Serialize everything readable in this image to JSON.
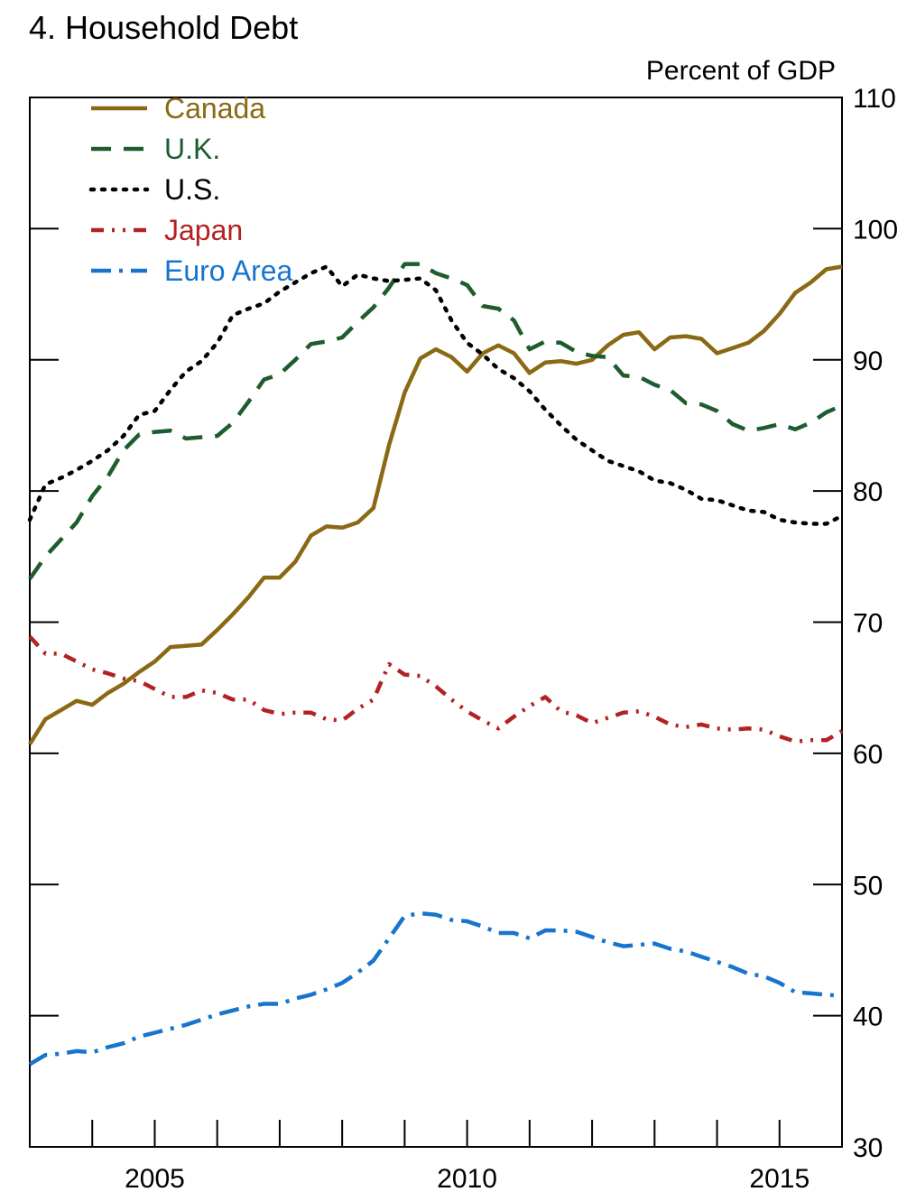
{
  "chart_data": {
    "type": "line",
    "title": "4. Household Debt",
    "ylabel": "Percent of GDP",
    "xlim": [
      2003.0,
      2016.0
    ],
    "ylim": [
      30,
      110
    ],
    "y_ticks": [
      30,
      40,
      50,
      60,
      70,
      80,
      90,
      100,
      110
    ],
    "x_tick_labels": [
      {
        "x": 2005.0,
        "label": "2005"
      },
      {
        "x": 2010.0,
        "label": "2010"
      },
      {
        "x": 2015.0,
        "label": "2015"
      }
    ],
    "x_minor_ticks": [
      2004.0,
      2005.0,
      2006.0,
      2007.0,
      2008.0,
      2009.0,
      2010.0,
      2011.0,
      2012.0,
      2013.0,
      2014.0,
      2015.0
    ],
    "grid": false,
    "legend_position": "top-left",
    "y_axis_side": "right",
    "series": [
      {
        "name": "Canada",
        "color": "#8B6914",
        "style": "solid",
        "x": [
          2003.0,
          2003.25,
          2003.5,
          2003.75,
          2004.0,
          2004.25,
          2004.5,
          2004.75,
          2005.0,
          2005.25,
          2005.5,
          2005.75,
          2006.0,
          2006.25,
          2006.5,
          2006.75,
          2007.0,
          2007.25,
          2007.5,
          2007.75,
          2008.0,
          2008.25,
          2008.5,
          2008.75,
          2009.0,
          2009.25,
          2009.5,
          2009.75,
          2010.0,
          2010.25,
          2010.5,
          2010.75,
          2011.0,
          2011.25,
          2011.5,
          2011.75,
          2012.0,
          2012.25,
          2012.5,
          2012.75,
          2013.0,
          2013.25,
          2013.5,
          2013.75,
          2014.0,
          2014.25,
          2014.5,
          2014.75,
          2015.0,
          2015.25,
          2015.5,
          2015.75,
          2016.0
        ],
        "y": [
          60.7,
          62.6,
          63.3,
          64.0,
          63.7,
          64.6,
          65.3,
          66.2,
          67.0,
          68.1,
          68.2,
          68.3,
          69.4,
          70.6,
          71.9,
          73.4,
          73.4,
          74.6,
          76.6,
          77.3,
          77.2,
          77.6,
          78.7,
          83.5,
          87.5,
          90.1,
          90.8,
          90.2,
          89.1,
          90.5,
          91.1,
          90.5,
          89.0,
          89.8,
          89.9,
          89.7,
          90.0,
          91.1,
          91.9,
          92.1,
          90.8,
          91.7,
          91.8,
          91.6,
          90.5,
          90.9,
          91.3,
          92.2,
          93.5,
          95.1,
          95.9,
          96.9,
          97.1
        ]
      },
      {
        "name": "U.K.",
        "color": "#1E5C2E",
        "style": "dashed",
        "x": [
          2003.0,
          2003.25,
          2003.5,
          2003.75,
          2004.0,
          2004.25,
          2004.5,
          2004.75,
          2005.0,
          2005.25,
          2005.5,
          2005.75,
          2006.0,
          2006.25,
          2006.5,
          2006.75,
          2007.0,
          2007.25,
          2007.5,
          2007.75,
          2008.0,
          2008.25,
          2008.5,
          2008.75,
          2009.0,
          2009.25,
          2009.5,
          2009.75,
          2010.0,
          2010.25,
          2010.5,
          2010.75,
          2011.0,
          2011.25,
          2011.5,
          2011.75,
          2012.0,
          2012.25,
          2012.5,
          2012.75,
          2013.0,
          2013.25,
          2013.5,
          2013.75,
          2014.0,
          2014.25,
          2014.5,
          2014.75,
          2015.0,
          2015.25,
          2015.5,
          2015.75,
          2016.0
        ],
        "y": [
          73.3,
          75.0,
          76.3,
          77.6,
          79.6,
          81.1,
          83.1,
          84.3,
          84.5,
          84.6,
          84.0,
          84.1,
          84.2,
          85.2,
          86.8,
          88.5,
          88.9,
          90.0,
          91.2,
          91.4,
          91.7,
          92.9,
          94.0,
          95.5,
          97.3,
          97.3,
          96.6,
          96.2,
          95.7,
          94.1,
          93.9,
          93.0,
          90.8,
          91.4,
          91.3,
          90.6,
          90.3,
          90.2,
          88.8,
          88.7,
          88.1,
          87.7,
          86.7,
          86.6,
          86.1,
          85.1,
          84.6,
          84.8,
          85.1,
          84.7,
          85.2,
          86.0,
          86.5
        ]
      },
      {
        "name": "U.S.",
        "color": "#000000",
        "style": "dotted",
        "x": [
          2003.0,
          2003.25,
          2003.5,
          2003.75,
          2004.0,
          2004.25,
          2004.5,
          2004.75,
          2005.0,
          2005.25,
          2005.5,
          2005.75,
          2006.0,
          2006.25,
          2006.5,
          2006.75,
          2007.0,
          2007.25,
          2007.5,
          2007.75,
          2008.0,
          2008.25,
          2008.5,
          2008.75,
          2009.0,
          2009.25,
          2009.5,
          2009.75,
          2010.0,
          2010.25,
          2010.5,
          2010.75,
          2011.0,
          2011.25,
          2011.5,
          2011.75,
          2012.0,
          2012.25,
          2012.5,
          2012.75,
          2013.0,
          2013.25,
          2013.5,
          2013.75,
          2014.0,
          2014.25,
          2014.5,
          2014.75,
          2015.0,
          2015.25,
          2015.5,
          2015.75,
          2016.0
        ],
        "y": [
          77.8,
          80.5,
          81.0,
          81.6,
          82.3,
          83.1,
          84.2,
          85.8,
          86.1,
          87.7,
          89.1,
          89.9,
          91.3,
          93.4,
          93.9,
          94.3,
          95.2,
          95.9,
          96.6,
          97.1,
          95.6,
          96.5,
          96.2,
          96.0,
          96.1,
          96.2,
          95.3,
          93.0,
          91.3,
          90.4,
          89.3,
          88.6,
          87.6,
          86.2,
          85.0,
          83.9,
          83.1,
          82.3,
          81.9,
          81.5,
          80.8,
          80.6,
          80.1,
          79.4,
          79.3,
          78.9,
          78.5,
          78.4,
          77.8,
          77.6,
          77.5,
          77.5,
          78.1
        ]
      },
      {
        "name": "Japan",
        "color": "#B22222",
        "style": "dash-dot-dot",
        "x": [
          2003.0,
          2003.25,
          2003.5,
          2003.75,
          2004.0,
          2004.25,
          2004.5,
          2004.75,
          2005.0,
          2005.25,
          2005.5,
          2005.75,
          2006.0,
          2006.25,
          2006.5,
          2006.75,
          2007.0,
          2007.25,
          2007.5,
          2007.75,
          2008.0,
          2008.25,
          2008.5,
          2008.75,
          2009.0,
          2009.25,
          2009.5,
          2009.75,
          2010.0,
          2010.25,
          2010.5,
          2010.75,
          2011.0,
          2011.25,
          2011.5,
          2011.75,
          2012.0,
          2012.25,
          2012.5,
          2012.75,
          2013.0,
          2013.25,
          2013.5,
          2013.75,
          2014.0,
          2014.25,
          2014.5,
          2014.75,
          2015.0,
          2015.25,
          2015.5,
          2015.75,
          2016.0
        ],
        "y": [
          68.9,
          67.6,
          67.6,
          67.0,
          66.4,
          66.1,
          65.7,
          65.5,
          64.9,
          64.3,
          64.3,
          64.8,
          64.6,
          64.1,
          64.1,
          63.3,
          63.0,
          63.1,
          63.1,
          62.6,
          62.5,
          63.4,
          64.1,
          66.8,
          66.0,
          65.9,
          65.1,
          64.1,
          63.2,
          62.5,
          61.9,
          62.8,
          63.6,
          64.3,
          63.2,
          62.9,
          62.3,
          62.7,
          63.1,
          63.2,
          62.8,
          62.2,
          62.0,
          62.2,
          61.9,
          61.8,
          61.9,
          61.8,
          61.3,
          60.9,
          61.0,
          61.0,
          61.7
        ]
      },
      {
        "name": "Euro Area",
        "color": "#1874CD",
        "style": "dash-dot",
        "x": [
          2003.0,
          2003.25,
          2003.5,
          2003.75,
          2004.0,
          2004.25,
          2004.5,
          2004.75,
          2005.0,
          2005.25,
          2005.5,
          2005.75,
          2006.0,
          2006.25,
          2006.5,
          2006.75,
          2007.0,
          2007.25,
          2007.5,
          2007.75,
          2008.0,
          2008.25,
          2008.5,
          2008.75,
          2009.0,
          2009.25,
          2009.5,
          2009.75,
          2010.0,
          2010.25,
          2010.5,
          2010.75,
          2011.0,
          2011.25,
          2011.5,
          2011.75,
          2012.0,
          2012.25,
          2012.5,
          2012.75,
          2013.0,
          2013.25,
          2013.5,
          2013.75,
          2014.0,
          2014.25,
          2014.5,
          2014.75,
          2015.0,
          2015.25,
          2015.5,
          2015.75,
          2016.0
        ],
        "y": [
          36.3,
          37.0,
          37.1,
          37.3,
          37.2,
          37.6,
          37.9,
          38.4,
          38.7,
          39.0,
          39.3,
          39.7,
          40.1,
          40.4,
          40.7,
          40.9,
          40.9,
          41.3,
          41.6,
          42.0,
          42.5,
          43.3,
          44.2,
          45.9,
          47.6,
          47.8,
          47.7,
          47.3,
          47.2,
          46.8,
          46.3,
          46.3,
          45.9,
          46.5,
          46.5,
          46.4,
          46.0,
          45.6,
          45.3,
          45.4,
          45.5,
          45.1,
          44.9,
          44.5,
          44.1,
          43.7,
          43.2,
          43.0,
          42.5,
          41.8,
          41.7,
          41.6,
          41.5
        ]
      }
    ]
  }
}
